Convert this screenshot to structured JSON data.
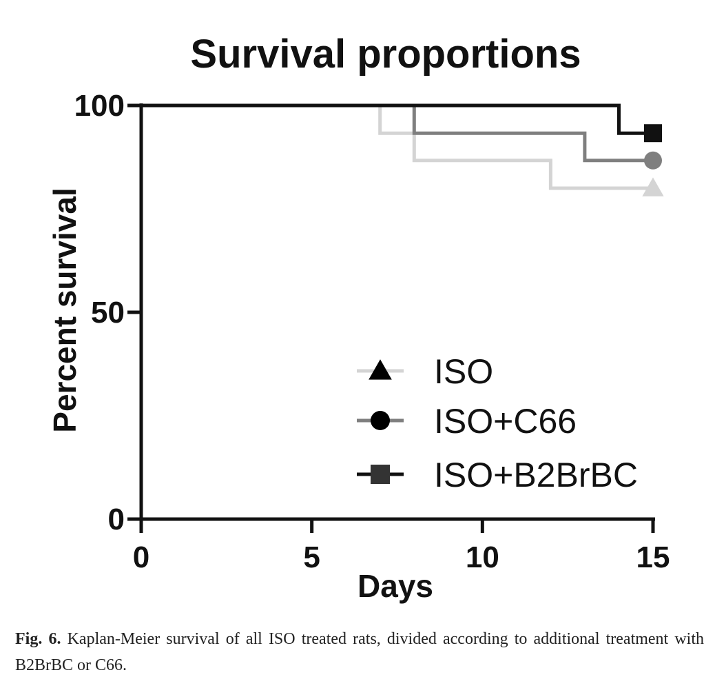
{
  "chart_data": {
    "type": "line",
    "subtype": "kaplan-meier-step",
    "title": "Survival proportions",
    "xlabel": "Days",
    "ylabel": "Percent survival",
    "xlim": [
      0,
      15
    ],
    "ylim": [
      0,
      100
    ],
    "xticks": [
      "0",
      "5",
      "10",
      "15"
    ],
    "yticks": [
      "0",
      "50",
      "100"
    ],
    "grid": false,
    "legend_position": "lower-right",
    "series": [
      {
        "name": "ISO",
        "color": "#d4d4d4",
        "marker": "triangle",
        "points": [
          [
            0,
            100
          ],
          [
            7,
            100
          ],
          [
            7,
            93.3
          ],
          [
            8,
            93.3
          ],
          [
            8,
            86.7
          ],
          [
            12,
            86.7
          ],
          [
            12,
            80
          ],
          [
            15,
            80
          ]
        ]
      },
      {
        "name": "ISO+C66",
        "color": "#7f7f7f",
        "marker": "circle",
        "points": [
          [
            0,
            100
          ],
          [
            8,
            100
          ],
          [
            8,
            93.3
          ],
          [
            13,
            93.3
          ],
          [
            13,
            86.7
          ],
          [
            15,
            86.7
          ]
        ]
      },
      {
        "name": "ISO+B2BrBC",
        "color": "#111111",
        "marker": "square",
        "points": [
          [
            0,
            100
          ],
          [
            14,
            100
          ],
          [
            14,
            93.3
          ],
          [
            15,
            93.3
          ]
        ]
      }
    ]
  },
  "caption": {
    "label": "Fig. 6.",
    "text": "Kaplan-Meier survival of all ISO treated rats, divided according to additional treatment with B2BrBC or C66."
  }
}
